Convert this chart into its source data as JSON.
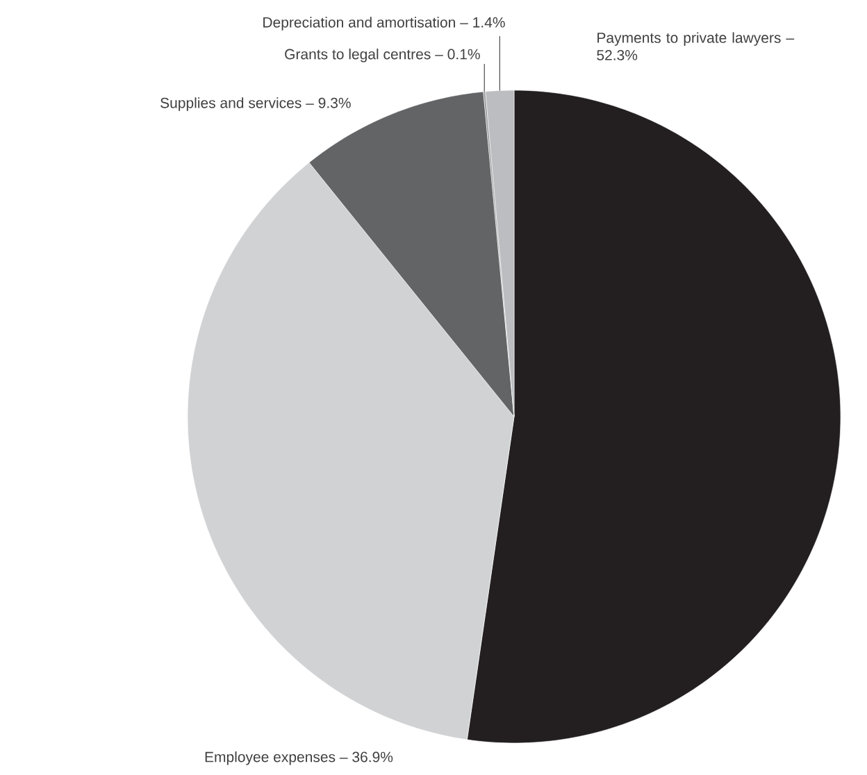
{
  "chart_data": {
    "type": "pie",
    "categories": [
      "Payments to private lawyers – 52.3%",
      "Employee expenses – 36.9%",
      "Supplies and services – 9.3%",
      "Grants to legal centres – 0.1%",
      "Depreciation and amortisation – 1.4%"
    ],
    "values": [
      52.3,
      36.9,
      9.3,
      0.1,
      1.4
    ],
    "colors": [
      "#231f20",
      "#d1d2d4",
      "#636466",
      "#9a9b9d",
      "#bcbdc0"
    ]
  }
}
